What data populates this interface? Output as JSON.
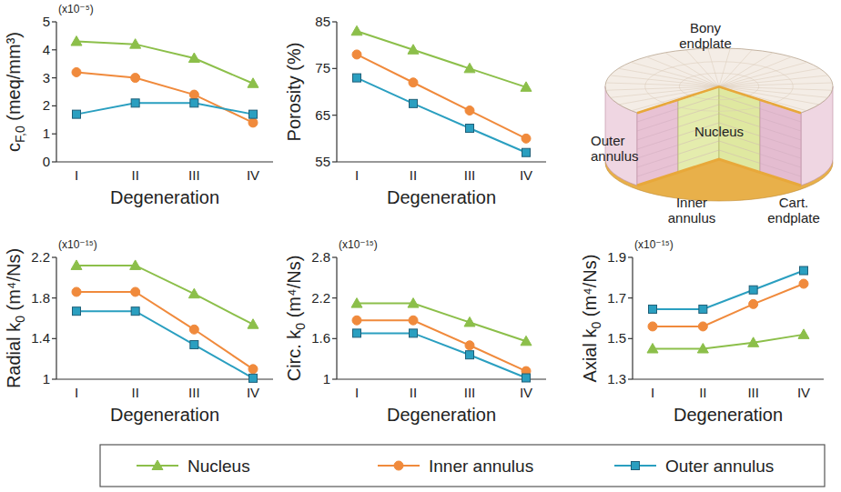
{
  "chart_data": [
    {
      "type": "line",
      "y_label": [
        "c",
        "F,0",
        " (meq/mm³)"
      ],
      "x_label": "Degeneration",
      "annotation": "(x10⁻⁵)",
      "categories": [
        "I",
        "II",
        "III",
        "IV"
      ],
      "series": [
        {
          "name": "Nucleus",
          "color": "#8cbf4a",
          "marker": "triangle",
          "values": [
            4.3,
            4.2,
            3.7,
            2.8
          ]
        },
        {
          "name": "Inner annulus",
          "color": "#f08a3c",
          "marker": "circle",
          "values": [
            3.2,
            3.0,
            2.4,
            1.4
          ]
        },
        {
          "name": "Outer annulus",
          "color": "#2a9fc0",
          "marker": "square",
          "values": [
            1.7,
            2.1,
            2.1,
            1.7
          ]
        }
      ],
      "ylim": [
        0,
        5
      ],
      "yticks": [
        0,
        1,
        2,
        3,
        4,
        5
      ],
      "legend": "bottom"
    },
    {
      "type": "line",
      "y_label": [
        "Porosity (%)"
      ],
      "x_label": "Degeneration",
      "categories": [
        "I",
        "II",
        "III",
        "IV"
      ],
      "series": [
        {
          "name": "Nucleus",
          "color": "#8cbf4a",
          "marker": "triangle",
          "values": [
            83,
            79,
            75,
            71
          ]
        },
        {
          "name": "Inner annulus",
          "color": "#f08a3c",
          "marker": "circle",
          "values": [
            78,
            72,
            66,
            60
          ]
        },
        {
          "name": "Outer annulus",
          "color": "#2a9fc0",
          "marker": "square",
          "values": [
            73,
            67.5,
            62.2,
            57
          ]
        }
      ],
      "ylim": [
        55,
        85
      ],
      "yticks": [
        55,
        65,
        75,
        85
      ]
    },
    {
      "type": "line",
      "y_label": [
        "Radial k",
        "0",
        " (m⁴/Ns)"
      ],
      "x_label": "Degeneration",
      "annotation": "(x10⁻¹⁵)",
      "categories": [
        "I",
        "II",
        "III",
        "IV"
      ],
      "series": [
        {
          "name": "Nucleus",
          "color": "#8cbf4a",
          "marker": "triangle",
          "values": [
            2.12,
            2.12,
            1.84,
            1.54
          ]
        },
        {
          "name": "Inner annulus",
          "color": "#f08a3c",
          "marker": "circle",
          "values": [
            1.86,
            1.86,
            1.49,
            1.1
          ]
        },
        {
          "name": "Outer annulus",
          "color": "#2a9fc0",
          "marker": "square",
          "values": [
            1.67,
            1.67,
            1.34,
            1.01
          ]
        }
      ],
      "ylim": [
        1,
        2.2
      ],
      "yticks": [
        1,
        1.4,
        1.8,
        2.2
      ]
    },
    {
      "type": "line",
      "y_label": [
        "Circ. k",
        "0",
        " (m⁴/Ns)"
      ],
      "x_label": "Degeneration",
      "annotation": "(x10⁻¹⁵)",
      "categories": [
        "I",
        "II",
        "III",
        "IV"
      ],
      "series": [
        {
          "name": "Nucleus",
          "color": "#8cbf4a",
          "marker": "triangle",
          "values": [
            2.12,
            2.12,
            1.84,
            1.56
          ]
        },
        {
          "name": "Inner annulus",
          "color": "#f08a3c",
          "marker": "circle",
          "values": [
            1.87,
            1.87,
            1.5,
            1.12
          ]
        },
        {
          "name": "Outer annulus",
          "color": "#2a9fc0",
          "marker": "square",
          "values": [
            1.68,
            1.68,
            1.36,
            1.02
          ]
        }
      ],
      "ylim": [
        1,
        2.8
      ],
      "yticks": [
        1,
        1.6,
        2.2,
        2.8
      ]
    },
    {
      "type": "line",
      "y_label": [
        "Axial k",
        "0",
        " (m⁴/Ns)"
      ],
      "x_label": "Degeneration",
      "annotation": "(x10⁻¹⁵)",
      "categories": [
        "I",
        "II",
        "III",
        "IV"
      ],
      "series": [
        {
          "name": "Nucleus",
          "color": "#8cbf4a",
          "marker": "triangle",
          "values": [
            1.45,
            1.45,
            1.48,
            1.52
          ]
        },
        {
          "name": "Inner annulus",
          "color": "#f08a3c",
          "marker": "circle",
          "values": [
            1.56,
            1.56,
            1.67,
            1.77
          ]
        },
        {
          "name": "Outer annulus",
          "color": "#2a9fc0",
          "marker": "square",
          "values": [
            1.645,
            1.645,
            1.74,
            1.835
          ]
        }
      ],
      "ylim": [
        1.3,
        1.9
      ],
      "yticks": [
        1.3,
        1.5,
        1.7,
        1.9
      ]
    }
  ],
  "diagram": {
    "labels": [
      "Bony endplate",
      "Nucleus",
      "Outer annulus",
      "Inner annulus",
      "Cart. endplate"
    ]
  }
}
